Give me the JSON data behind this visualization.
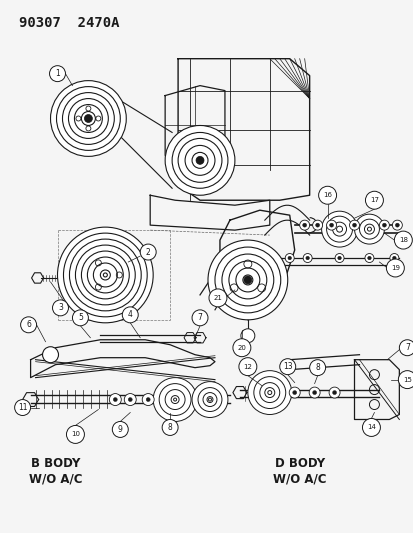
{
  "title": "90307  2470A",
  "title_fontsize": 10,
  "background_color": "#f5f5f5",
  "line_color": "#1a1a1a",
  "label_b_body": "B BODY\nW/O A/C",
  "label_d_body": "D BODY\nW/O A/C",
  "figsize": [
    4.14,
    5.33
  ],
  "dpi": 100
}
